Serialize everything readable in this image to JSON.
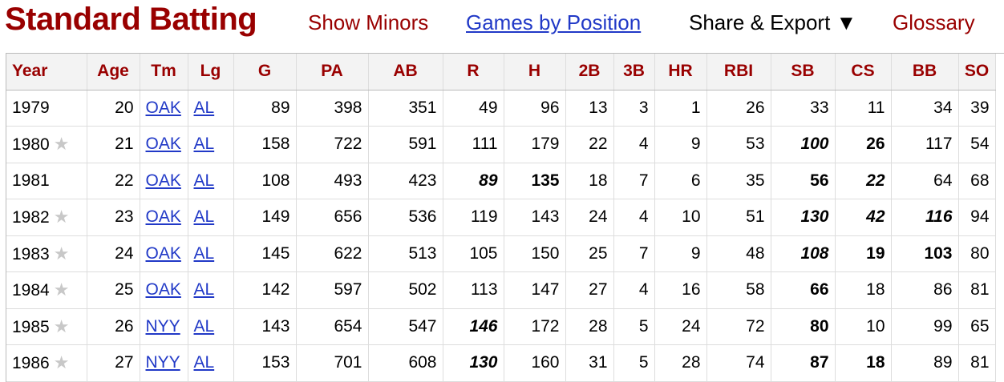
{
  "header": {
    "title": "Standard Batting",
    "links": {
      "show_minors": "Show Minors",
      "games_by_position": "Games by Position",
      "share_export": "Share & Export ▼",
      "glossary": "Glossary"
    }
  },
  "colors": {
    "title": "#990000",
    "link": "#2139c7",
    "star": "#c8c8c8"
  },
  "table": {
    "columns": [
      "Year",
      "Age",
      "Tm",
      "Lg",
      "G",
      "PA",
      "AB",
      "R",
      "H",
      "2B",
      "3B",
      "HR",
      "RBI",
      "SB",
      "CS",
      "BB",
      "SO"
    ],
    "rows": [
      {
        "Year": "1979",
        "star": false,
        "Age": "20",
        "Tm": "OAK",
        "Lg": "AL",
        "G": "89",
        "PA": "398",
        "AB": "351",
        "R": "49",
        "H": "96",
        "2B": "13",
        "3B": "3",
        "HR": "1",
        "RBI": "26",
        "SB": "33",
        "CS": "11",
        "BB": "34",
        "SO": "39",
        "style": {}
      },
      {
        "Year": "1980",
        "star": true,
        "Age": "21",
        "Tm": "OAK",
        "Lg": "AL",
        "G": "158",
        "PA": "722",
        "AB": "591",
        "R": "111",
        "H": "179",
        "2B": "22",
        "3B": "4",
        "HR": "9",
        "RBI": "53",
        "SB": "100",
        "CS": "26",
        "BB": "117",
        "SO": "54",
        "style": {
          "SB": "bold-italic",
          "CS": "bold"
        }
      },
      {
        "Year": "1981",
        "star": false,
        "Age": "22",
        "Tm": "OAK",
        "Lg": "AL",
        "G": "108",
        "PA": "493",
        "AB": "423",
        "R": "89",
        "H": "135",
        "2B": "18",
        "3B": "7",
        "HR": "6",
        "RBI": "35",
        "SB": "56",
        "CS": "22",
        "BB": "64",
        "SO": "68",
        "style": {
          "R": "bold-italic",
          "H": "bold",
          "SB": "bold",
          "CS": "bold-italic"
        }
      },
      {
        "Year": "1982",
        "star": true,
        "Age": "23",
        "Tm": "OAK",
        "Lg": "AL",
        "G": "149",
        "PA": "656",
        "AB": "536",
        "R": "119",
        "H": "143",
        "2B": "24",
        "3B": "4",
        "HR": "10",
        "RBI": "51",
        "SB": "130",
        "CS": "42",
        "BB": "116",
        "SO": "94",
        "style": {
          "SB": "bold-italic",
          "CS": "bold-italic",
          "BB": "bold-italic"
        }
      },
      {
        "Year": "1983",
        "star": true,
        "Age": "24",
        "Tm": "OAK",
        "Lg": "AL",
        "G": "145",
        "PA": "622",
        "AB": "513",
        "R": "105",
        "H": "150",
        "2B": "25",
        "3B": "7",
        "HR": "9",
        "RBI": "48",
        "SB": "108",
        "CS": "19",
        "BB": "103",
        "SO": "80",
        "style": {
          "SB": "bold-italic",
          "CS": "bold",
          "BB": "bold"
        }
      },
      {
        "Year": "1984",
        "star": true,
        "Age": "25",
        "Tm": "OAK",
        "Lg": "AL",
        "G": "142",
        "PA": "597",
        "AB": "502",
        "R": "113",
        "H": "147",
        "2B": "27",
        "3B": "4",
        "HR": "16",
        "RBI": "58",
        "SB": "66",
        "CS": "18",
        "BB": "86",
        "SO": "81",
        "style": {
          "SB": "bold"
        }
      },
      {
        "Year": "1985",
        "star": true,
        "Age": "26",
        "Tm": "NYY",
        "Lg": "AL",
        "G": "143",
        "PA": "654",
        "AB": "547",
        "R": "146",
        "H": "172",
        "2B": "28",
        "3B": "5",
        "HR": "24",
        "RBI": "72",
        "SB": "80",
        "CS": "10",
        "BB": "99",
        "SO": "65",
        "style": {
          "R": "bold-italic",
          "SB": "bold"
        }
      },
      {
        "Year": "1986",
        "star": true,
        "Age": "27",
        "Tm": "NYY",
        "Lg": "AL",
        "G": "153",
        "PA": "701",
        "AB": "608",
        "R": "130",
        "H": "160",
        "2B": "31",
        "3B": "5",
        "HR": "28",
        "RBI": "74",
        "SB": "87",
        "CS": "18",
        "BB": "89",
        "SO": "81",
        "style": {
          "R": "bold-italic",
          "SB": "bold",
          "CS": "bold"
        }
      }
    ]
  }
}
